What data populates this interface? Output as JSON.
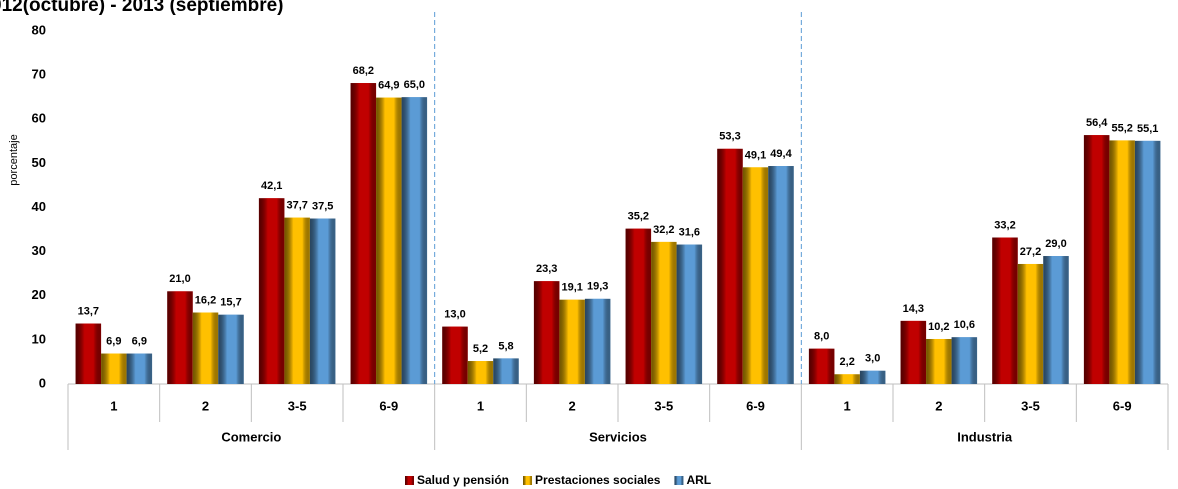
{
  "chart_data": {
    "type": "bar",
    "title": "012(octubre) - 2013 (septiembre)",
    "y_label": "porcentaje",
    "categories": [
      "1",
      "2",
      "3-5",
      "6-9",
      "1",
      "2",
      "3-5",
      "6-9",
      "1",
      "2",
      "3-5",
      "6-9"
    ],
    "groups": [
      "Comercio",
      "Servicios",
      "Industria"
    ],
    "ylim": [
      0,
      80
    ],
    "yticks": [
      0,
      10,
      20,
      30,
      40,
      50,
      60,
      70,
      80
    ],
    "series": [
      {
        "name": "Salud y pensión",
        "color": "#c00000",
        "values": [
          13.7,
          21.0,
          42.1,
          68.2,
          13.0,
          23.3,
          35.2,
          53.3,
          8.0,
          14.3,
          33.2,
          56.4
        ],
        "value_labels": [
          "13,7",
          "21,0",
          "42,1",
          "68,2",
          "13,0",
          "23,3",
          "35,2",
          "53,3",
          "8,0",
          "14,3",
          "33,2",
          "56,4"
        ]
      },
      {
        "name": "Prestaciones sociales",
        "color": "#ffc000",
        "values": [
          6.9,
          16.2,
          37.7,
          64.9,
          5.2,
          19.1,
          32.2,
          49.1,
          2.2,
          10.2,
          27.2,
          55.2
        ],
        "value_labels": [
          "6,9",
          "16,2",
          "37,7",
          "64,9",
          "5,2",
          "19,1",
          "32,2",
          "49,1",
          "2,2",
          "10,2",
          "27,2",
          "55,2"
        ]
      },
      {
        "name": "ARL",
        "color": "#5b9bd5",
        "values": [
          6.9,
          15.7,
          37.5,
          65.0,
          5.8,
          19.3,
          31.6,
          49.4,
          3.0,
          10.6,
          29.0,
          55.1
        ],
        "value_labels": [
          "6,9",
          "15,7",
          "37,5",
          "65,0",
          "5,8",
          "19,3",
          "31,6",
          "49,4",
          "3,0",
          "10,6",
          "29,0",
          "55,1"
        ]
      }
    ]
  }
}
